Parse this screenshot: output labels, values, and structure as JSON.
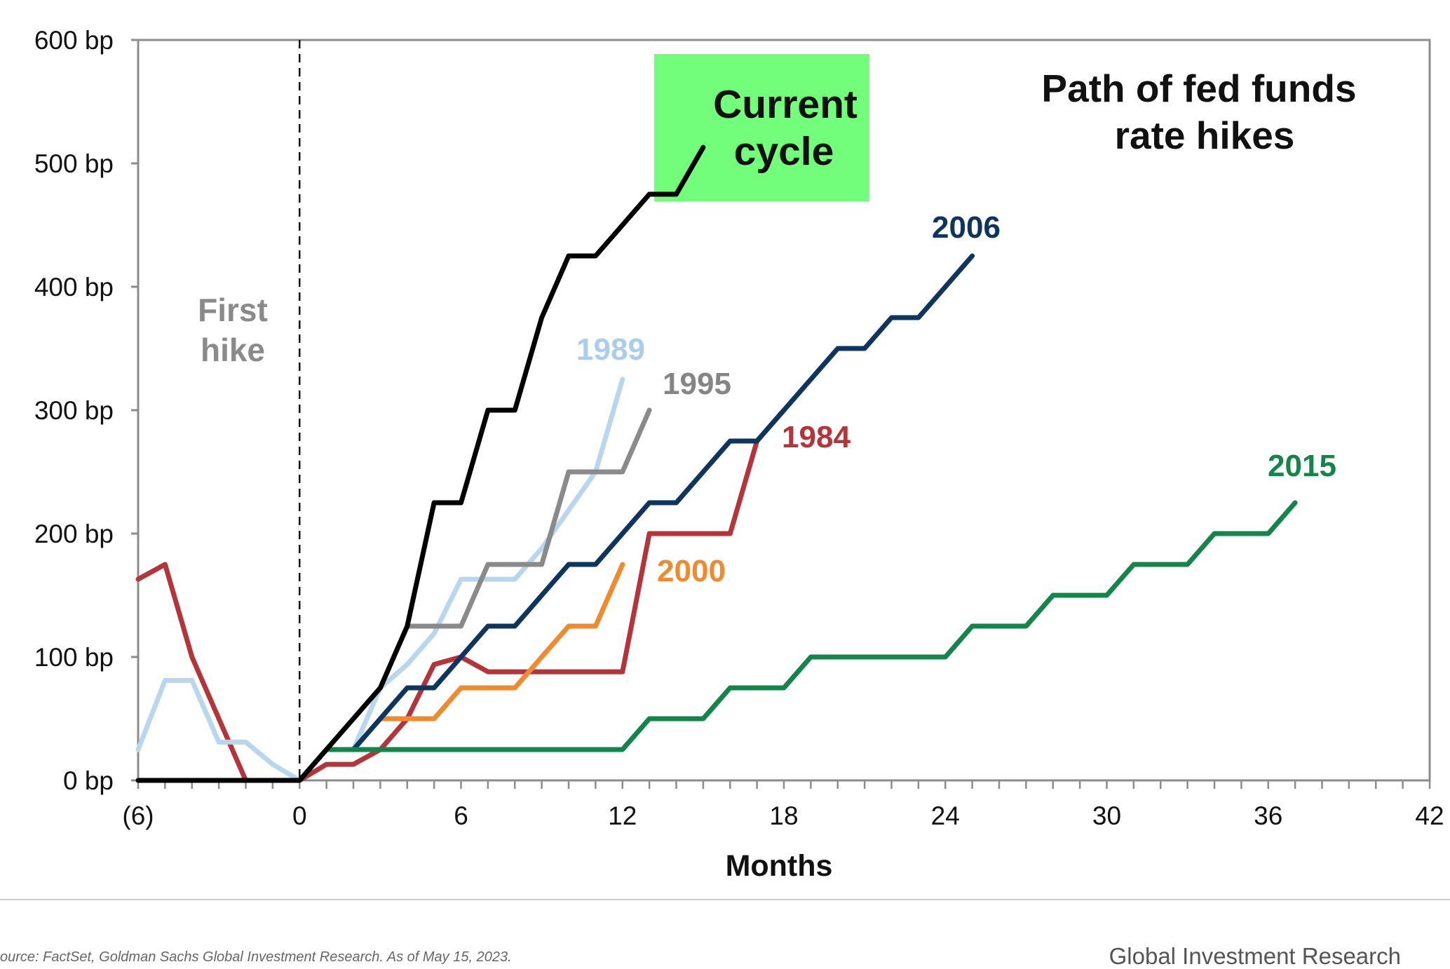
{
  "chart_data": {
    "type": "line",
    "title_lines": [
      "Path of fed funds",
      "rate hikes"
    ],
    "xlabel": "Months",
    "ylabel": "",
    "xlim": [
      -6,
      42
    ],
    "ylim": [
      0,
      600
    ],
    "x_ticks": [
      -6,
      0,
      6,
      12,
      18,
      24,
      30,
      36,
      42
    ],
    "x_tick_labels": [
      "(6)",
      "0",
      "6",
      "12",
      "18",
      "24",
      "30",
      "36",
      "42"
    ],
    "y_ticks": [
      0,
      100,
      200,
      300,
      400,
      500,
      600
    ],
    "y_tick_labels": [
      "0 bp",
      "100 bp",
      "200 bp",
      "300 bp",
      "400 bp",
      "500 bp",
      "600 bp"
    ],
    "grid": false,
    "first_hike_annotation": [
      "First",
      "hike"
    ],
    "current_cycle_box_lines": [
      "Current",
      "cycle"
    ],
    "series": [
      {
        "name": "1984",
        "color": "#b5343a",
        "points": [
          [
            -6,
            163
          ],
          [
            -5,
            175
          ],
          [
            -4,
            100
          ],
          [
            -3,
            50
          ],
          [
            -2,
            0
          ],
          [
            -1,
            0
          ],
          [
            0,
            0
          ],
          [
            1,
            13
          ],
          [
            2,
            13
          ],
          [
            3,
            25
          ],
          [
            4,
            50
          ],
          [
            5,
            94
          ],
          [
            6,
            100
          ],
          [
            7,
            88
          ],
          [
            8,
            88
          ],
          [
            9,
            88
          ],
          [
            10,
            88
          ],
          [
            11,
            88
          ],
          [
            12,
            88
          ],
          [
            13,
            200
          ],
          [
            14,
            200
          ],
          [
            15,
            200
          ],
          [
            16,
            200
          ],
          [
            17,
            275
          ],
          [
            18,
            300
          ]
        ]
      },
      {
        "name": "1989",
        "color": "#b8d7ee",
        "points": [
          [
            -6,
            25
          ],
          [
            -5,
            81
          ],
          [
            -4,
            81
          ],
          [
            -3,
            31
          ],
          [
            -2,
            31
          ],
          [
            -1,
            13
          ],
          [
            0,
            0
          ],
          [
            1,
            25
          ],
          [
            2,
            25
          ],
          [
            3,
            75
          ],
          [
            4,
            94
          ],
          [
            5,
            119
          ],
          [
            6,
            163
          ],
          [
            7,
            163
          ],
          [
            8,
            163
          ],
          [
            9,
            188
          ],
          [
            10,
            219
          ],
          [
            11,
            250
          ],
          [
            12,
            325
          ]
        ]
      },
      {
        "name": "1995",
        "color": "#8a8a8a",
        "points": [
          [
            0,
            0
          ],
          [
            1,
            25
          ],
          [
            2,
            50
          ],
          [
            3,
            75
          ],
          [
            4,
            125
          ],
          [
            5,
            125
          ],
          [
            6,
            125
          ],
          [
            7,
            175
          ],
          [
            8,
            175
          ],
          [
            9,
            175
          ],
          [
            10,
            250
          ],
          [
            11,
            250
          ],
          [
            12,
            250
          ],
          [
            13,
            300
          ]
        ]
      },
      {
        "name": "2000",
        "color": "#f08a2e",
        "points": [
          [
            3,
            50
          ],
          [
            4,
            50
          ],
          [
            5,
            50
          ],
          [
            6,
            75
          ],
          [
            7,
            75
          ],
          [
            8,
            75
          ],
          [
            9,
            100
          ],
          [
            10,
            125
          ],
          [
            11,
            125
          ],
          [
            12,
            175
          ]
        ]
      },
      {
        "name": "2006",
        "color": "#0d3560",
        "points": [
          [
            0,
            0
          ],
          [
            1,
            25
          ],
          [
            2,
            25
          ],
          [
            3,
            50
          ],
          [
            4,
            75
          ],
          [
            5,
            75
          ],
          [
            6,
            100
          ],
          [
            7,
            125
          ],
          [
            8,
            125
          ],
          [
            9,
            150
          ],
          [
            10,
            175
          ],
          [
            11,
            175
          ],
          [
            12,
            200
          ],
          [
            13,
            225
          ],
          [
            14,
            225
          ],
          [
            15,
            250
          ],
          [
            16,
            275
          ],
          [
            17,
            275
          ],
          [
            18,
            300
          ],
          [
            19,
            325
          ],
          [
            20,
            350
          ],
          [
            21,
            350
          ],
          [
            22,
            375
          ],
          [
            23,
            375
          ],
          [
            24,
            400
          ],
          [
            25,
            425
          ]
        ]
      },
      {
        "name": "2015",
        "color": "#13854a",
        "points": [
          [
            0,
            0
          ],
          [
            1,
            25
          ],
          [
            2,
            25
          ],
          [
            4,
            25
          ],
          [
            6,
            25
          ],
          [
            8,
            25
          ],
          [
            10,
            25
          ],
          [
            12,
            25
          ],
          [
            13,
            50
          ],
          [
            14,
            50
          ],
          [
            15,
            50
          ],
          [
            16,
            75
          ],
          [
            17,
            75
          ],
          [
            18,
            75
          ],
          [
            19,
            100
          ],
          [
            20,
            100
          ],
          [
            21,
            100
          ],
          [
            22,
            100
          ],
          [
            23,
            100
          ],
          [
            24,
            100
          ],
          [
            25,
            125
          ],
          [
            26,
            125
          ],
          [
            27,
            125
          ],
          [
            28,
            150
          ],
          [
            29,
            150
          ],
          [
            30,
            150
          ],
          [
            31,
            175
          ],
          [
            32,
            175
          ],
          [
            33,
            175
          ],
          [
            34,
            200
          ],
          [
            35,
            200
          ],
          [
            36,
            200
          ],
          [
            37,
            225
          ]
        ]
      },
      {
        "name": "Current cycle",
        "color": "#000000",
        "points": [
          [
            -6,
            0
          ],
          [
            -3,
            0
          ],
          [
            0,
            0
          ],
          [
            1,
            25
          ],
          [
            2,
            50
          ],
          [
            3,
            75
          ],
          [
            4,
            125
          ],
          [
            5,
            225
          ],
          [
            6,
            225
          ],
          [
            7,
            300
          ],
          [
            8,
            300
          ],
          [
            9,
            375
          ],
          [
            10,
            425
          ],
          [
            11,
            425
          ],
          [
            12,
            450
          ],
          [
            13,
            475
          ],
          [
            14,
            475
          ],
          [
            15,
            513
          ]
        ]
      }
    ],
    "series_labels": [
      {
        "text": "1989",
        "color": "#a9cdea"
      },
      {
        "text": "1995",
        "color": "#858585"
      },
      {
        "text": "1984",
        "color": "#b5343a"
      },
      {
        "text": "2000",
        "color": "#f08a2e"
      },
      {
        "text": "2006",
        "color": "#0d3560"
      },
      {
        "text": "2015",
        "color": "#13854a"
      }
    ],
    "highlight_box_color": "#72fd7a"
  },
  "footer": {
    "source": "ource: FactSet, Goldman Sachs Global Investment Research. As of May 15, 2023.",
    "brand": "Global Investment Research"
  }
}
